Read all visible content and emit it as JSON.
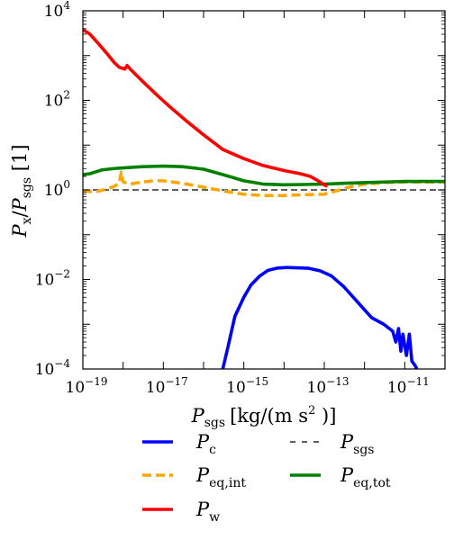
{
  "chart_data": {
    "type": "line",
    "title": "",
    "xscale": "log",
    "yscale": "log",
    "xlim": [
      1e-19,
      1e-10
    ],
    "ylim": [
      0.0001,
      10000.0
    ],
    "xlabel": {
      "base": "P",
      "sub": "sgs",
      "unit": "[kg/(m s",
      "unit_sup": "2",
      "unit_end": " )]"
    },
    "ylabel": {
      "base": "P",
      "sub1": "x",
      "sep": "/",
      "base2": "P",
      "sub2": "sgs",
      "unit": " [1]"
    },
    "xticks": [
      {
        "value": 1e-19,
        "mant": "10",
        "exp": "−19"
      },
      {
        "value": 1e-17,
        "mant": "10",
        "exp": "−17"
      },
      {
        "value": 1e-15,
        "mant": "10",
        "exp": "−15"
      },
      {
        "value": 1e-13,
        "mant": "10",
        "exp": "−13"
      },
      {
        "value": 1e-11,
        "mant": "10",
        "exp": "−11"
      }
    ],
    "yticks": [
      {
        "value": 10000.0,
        "mant": "10",
        "exp": "4"
      },
      {
        "value": 100.0,
        "mant": "10",
        "exp": "2"
      },
      {
        "value": 1.0,
        "mant": "10",
        "exp": "0"
      },
      {
        "value": 0.01,
        "mant": "10",
        "exp": "−2"
      },
      {
        "value": 0.0001,
        "mant": "10",
        "exp": "−4"
      }
    ],
    "grid": false,
    "legend_position": "below",
    "series": [
      {
        "name": "P_c",
        "label_base": "P",
        "label_sub": "c",
        "color": "#0000ff",
        "style": "solid",
        "points": [
          [
            3e-16,
            0.0001
          ],
          [
            4e-16,
            0.0003
          ],
          [
            6e-16,
            0.0015
          ],
          [
            1e-15,
            0.004
          ],
          [
            1.5e-15,
            0.0075
          ],
          [
            2.5e-15,
            0.012
          ],
          [
            4e-15,
            0.016
          ],
          [
            7e-15,
            0.018
          ],
          [
            1.2e-14,
            0.0185
          ],
          [
            2e-14,
            0.0182
          ],
          [
            4e-14,
            0.0178
          ],
          [
            8e-14,
            0.0155
          ],
          [
            1.5e-13,
            0.012
          ],
          [
            3e-13,
            0.007
          ],
          [
            7e-13,
            0.003
          ],
          [
            1.5e-12,
            0.0014
          ],
          [
            3e-12,
            0.001
          ],
          [
            5e-12,
            0.0007
          ],
          [
            6e-12,
            0.0004
          ],
          [
            7e-12,
            0.0008
          ],
          [
            8e-12,
            0.00025
          ],
          [
            9e-12,
            0.0006
          ],
          [
            1.1e-11,
            0.0002
          ],
          [
            1.3e-11,
            0.0006
          ],
          [
            1.5e-11,
            0.00015
          ],
          [
            1.8e-11,
            0.00012
          ],
          [
            2e-11,
            0.0001
          ]
        ]
      },
      {
        "name": "P_w",
        "label_base": "P",
        "label_sub": "w",
        "color": "#ff0000",
        "style": "solid",
        "points": [
          [
            1e-19,
            3800.0
          ],
          [
            1.5e-19,
            3000.0
          ],
          [
            2.5e-19,
            1800.0
          ],
          [
            4e-19,
            1100.0
          ],
          [
            6e-19,
            700.0
          ],
          [
            8e-19,
            550.0
          ],
          [
            1.1e-18,
            500.0
          ],
          [
            1.25e-18,
            600.0
          ],
          [
            1.5e-18,
            500.0
          ],
          [
            3e-18,
            270.0
          ],
          [
            7e-18,
            130.0
          ],
          [
            1.5e-17,
            70.0
          ],
          [
            4e-17,
            33.0
          ],
          [
            1e-16,
            17.0
          ],
          [
            3e-16,
            8
          ],
          [
            1e-15,
            5
          ],
          [
            3e-15,
            3.5
          ],
          [
            1e-14,
            2.7
          ],
          [
            2.5e-14,
            2.3
          ],
          [
            4.5e-14,
            2
          ],
          [
            7e-14,
            1.6
          ],
          [
            1e-13,
            1.3
          ],
          [
            1.2e-13,
            1.2
          ]
        ]
      },
      {
        "name": "P_eq,tot",
        "label_base": "P",
        "label_sub": "eq,tot",
        "color": "#008000",
        "style": "solid",
        "points": [
          [
            1e-19,
            2.2
          ],
          [
            1.5e-19,
            2.3
          ],
          [
            3e-19,
            2.8
          ],
          [
            6e-19,
            3.0
          ],
          [
            1e-18,
            3.1
          ],
          [
            3e-18,
            3.3
          ],
          [
            1e-17,
            3.4
          ],
          [
            3e-17,
            3.3
          ],
          [
            1e-16,
            2.9
          ],
          [
            3e-16,
            2.2
          ],
          [
            1e-15,
            1.6
          ],
          [
            3e-15,
            1.35
          ],
          [
            1e-14,
            1.3
          ],
          [
            3e-14,
            1.32
          ],
          [
            1e-13,
            1.35
          ],
          [
            3e-13,
            1.4
          ],
          [
            1e-12,
            1.45
          ],
          [
            3e-12,
            1.5
          ],
          [
            1e-11,
            1.55
          ],
          [
            1e-10,
            1.55
          ]
        ]
      },
      {
        "name": "P_eq,int",
        "label_base": "P",
        "label_sub": "eq,int",
        "color": "#ffa500",
        "style": "dashed",
        "points": [
          [
            1e-19,
            0.95
          ],
          [
            2e-19,
            0.9
          ],
          [
            4e-19,
            1.05
          ],
          [
            6e-19,
            1.2
          ],
          [
            8e-19,
            1.4
          ],
          [
            9e-19,
            2.5
          ],
          [
            1e-18,
            1.5
          ],
          [
            1.5e-18,
            1.35
          ],
          [
            3e-18,
            1.5
          ],
          [
            6e-18,
            1.6
          ],
          [
            1e-17,
            1.6
          ],
          [
            3e-17,
            1.4
          ],
          [
            1e-16,
            1.15
          ],
          [
            3e-16,
            0.95
          ],
          [
            1e-15,
            0.8
          ],
          [
            3e-15,
            0.75
          ],
          [
            1e-14,
            0.75
          ],
          [
            3e-14,
            0.78
          ],
          [
            1e-13,
            0.8
          ],
          [
            2e-13,
            0.95
          ],
          [
            5e-13,
            1.2
          ],
          [
            1e-12,
            1.35
          ],
          [
            3e-12,
            1.45
          ],
          [
            1e-11,
            1.5
          ],
          [
            1e-10,
            1.5
          ]
        ]
      },
      {
        "name": "P_sgs",
        "label_base": "P",
        "label_sub": "sgs",
        "color": "#000000",
        "style": "dashed-thin",
        "points": [
          [
            1e-19,
            1
          ],
          [
            1e-10,
            1
          ]
        ]
      }
    ],
    "legend_order": [
      0,
      3,
      1,
      4,
      2
    ]
  }
}
